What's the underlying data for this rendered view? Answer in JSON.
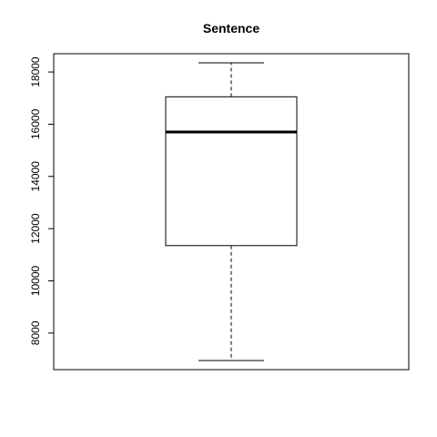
{
  "chart_data": {
    "type": "boxplot",
    "title": "Sentence",
    "xlabel": "",
    "ylabel": "",
    "ylim": [
      6600,
      18700
    ],
    "yticks": [
      8000,
      10000,
      12000,
      14000,
      16000,
      18000
    ],
    "ytick_labels": [
      "8000",
      "10000",
      "12000",
      "14000",
      "16000",
      "18000"
    ],
    "grid": false,
    "box": {
      "whisker_low": 6950,
      "q1": 11350,
      "median": 15700,
      "q3": 17050,
      "whisker_high": 18350
    },
    "colors": {
      "stroke": "#000000",
      "background": "#ffffff"
    }
  }
}
